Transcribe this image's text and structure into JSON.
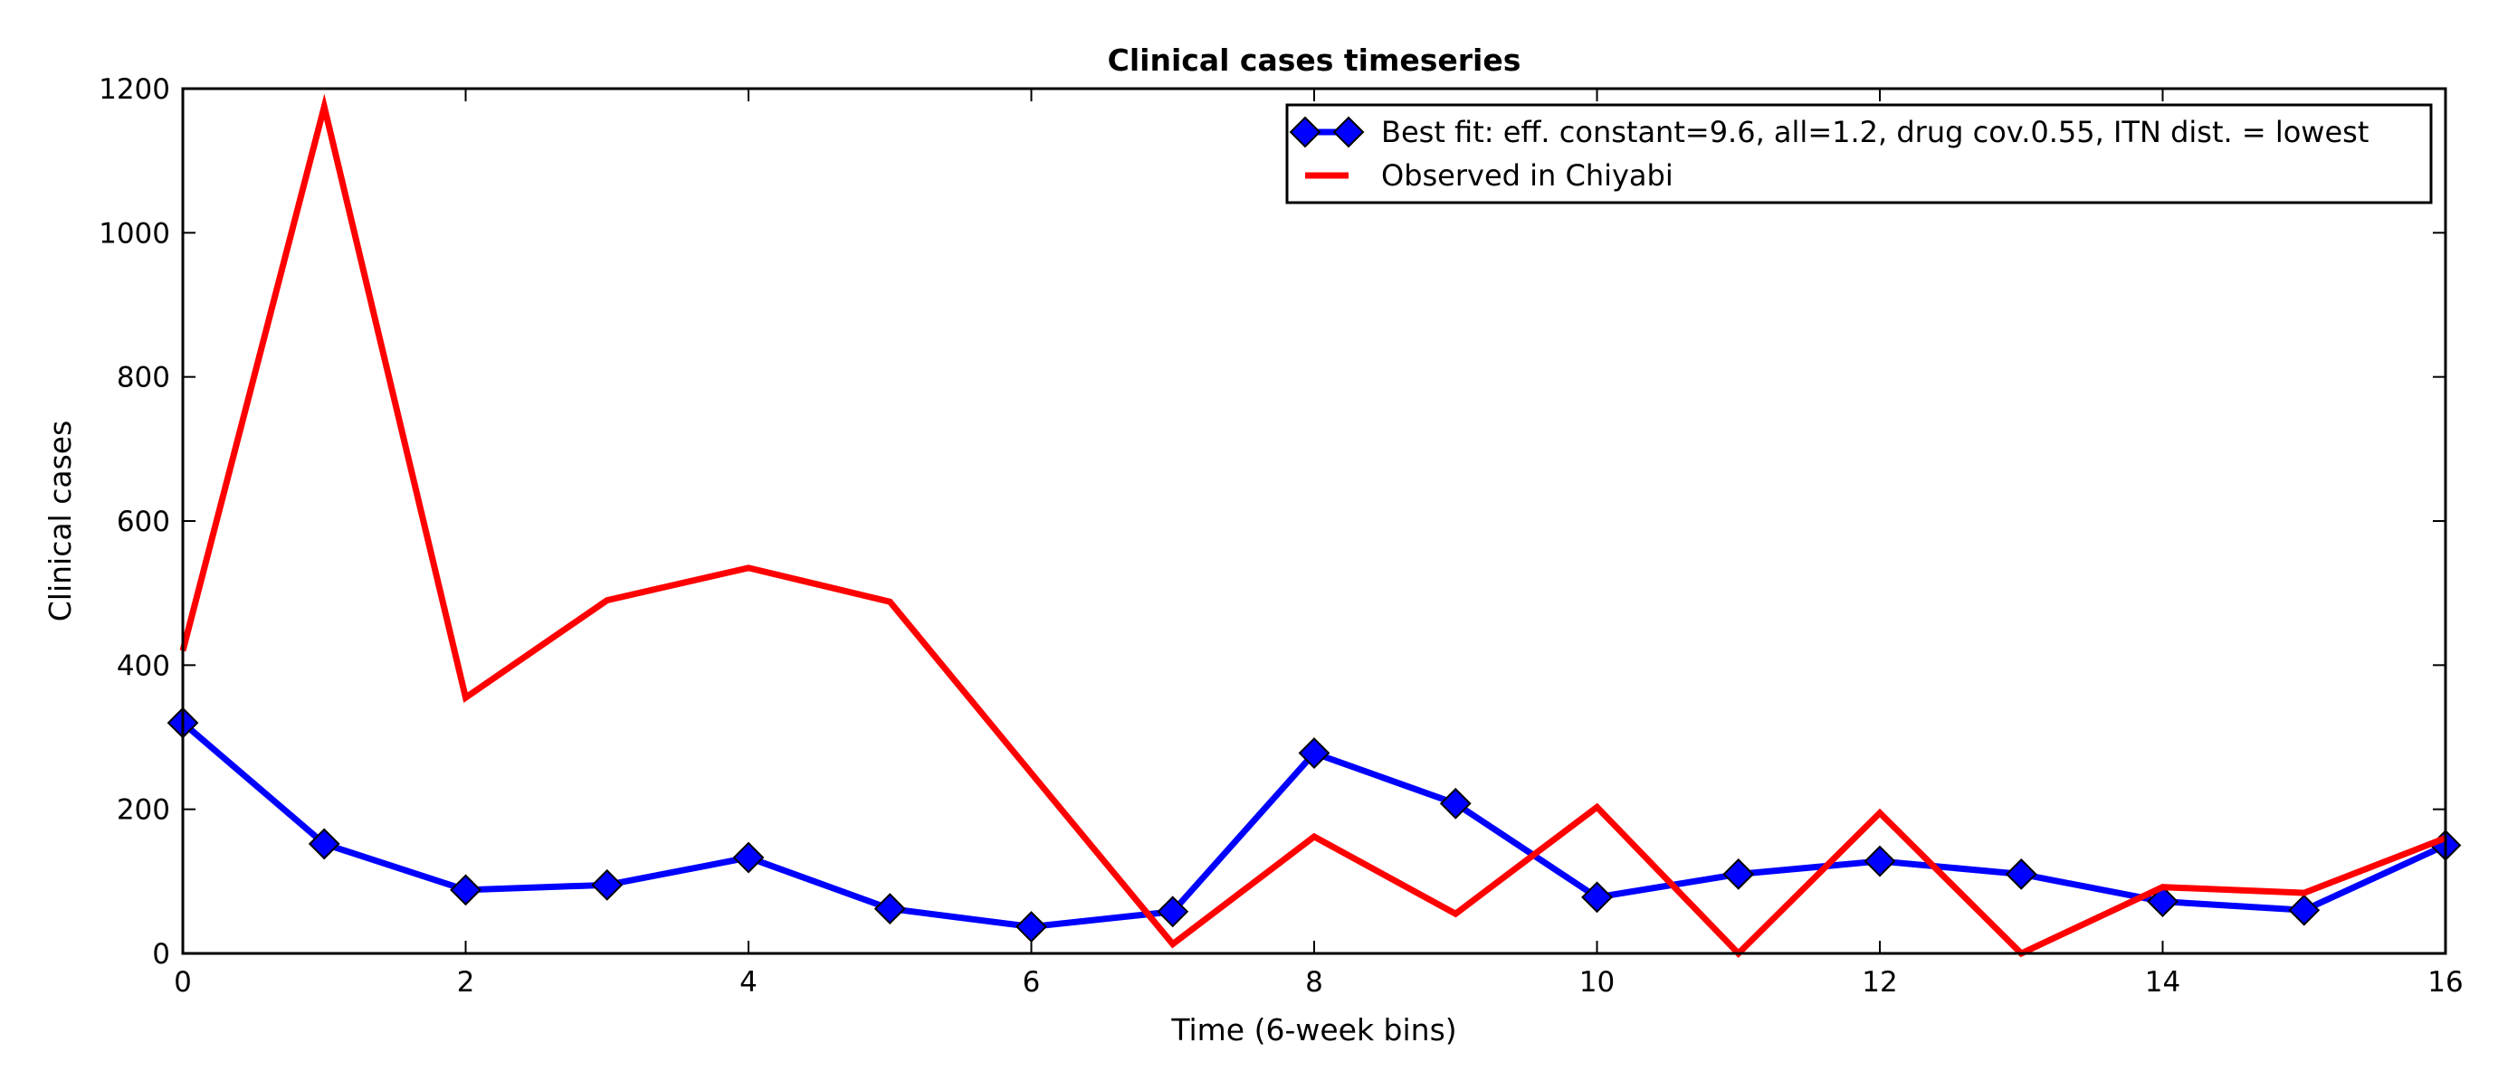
{
  "chart_data": {
    "type": "line",
    "title": "Clinical cases timeseries",
    "xlabel": "Time (6-week bins)",
    "ylabel": "Clinical cases",
    "xlim": [
      0,
      16
    ],
    "ylim": [
      0,
      1200
    ],
    "xticks": [
      0,
      2,
      4,
      6,
      8,
      10,
      12,
      14,
      16
    ],
    "yticks": [
      0,
      200,
      400,
      600,
      800,
      1000,
      1200
    ],
    "grid": false,
    "legend_position": "top-right",
    "x": [
      0,
      1,
      2,
      3,
      4,
      5,
      6,
      7,
      8,
      9,
      10,
      11,
      12,
      13,
      14,
      15,
      16
    ],
    "series": [
      {
        "name": "Best fit: eff. constant=9.6, all=1.2, drug cov.0.55, ITN dist. = lowest",
        "color": "#0000ff",
        "marker": "diamond",
        "values": [
          320,
          152,
          88,
          95,
          133,
          62,
          37,
          58,
          278,
          208,
          78,
          110,
          128,
          110,
          72,
          60,
          150
        ]
      },
      {
        "name": "Observed in Chiyabi",
        "color": "#ff0000",
        "marker": "none",
        "values": [
          420,
          1175,
          355,
          490,
          535,
          488,
          250,
          13,
          162,
          55,
          203,
          0,
          195,
          0,
          92,
          84,
          160
        ]
      }
    ]
  }
}
